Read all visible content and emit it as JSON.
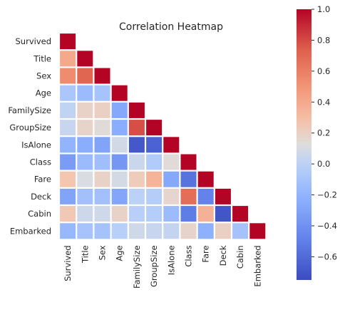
{
  "chart_data": {
    "type": "heatmap",
    "title": "Correlation Heatmap",
    "mask": "upper-triangle",
    "labels": [
      "Survived",
      "Title",
      "Sex",
      "Age",
      "FamilySize",
      "GroupSize",
      "IsAlone",
      "Class",
      "Fare",
      "Deck",
      "Cabin",
      "Embarked"
    ],
    "values": [
      [
        1.0
      ],
      [
        0.4,
        1.0
      ],
      [
        0.54,
        0.71,
        1.0
      ],
      [
        -0.08,
        -0.15,
        -0.1,
        1.0
      ],
      [
        0.02,
        0.19,
        0.2,
        -0.27,
        1.0
      ],
      [
        0.04,
        0.18,
        0.14,
        -0.24,
        0.79,
        1.0
      ],
      [
        -0.2,
        -0.24,
        -0.3,
        0.08,
        -0.69,
        -0.64,
        1.0
      ],
      [
        -0.34,
        -0.15,
        -0.13,
        -0.37,
        0.05,
        -0.05,
        0.14,
        1.0
      ],
      [
        0.26,
        0.11,
        0.19,
        0.09,
        0.22,
        0.35,
        -0.27,
        -0.56,
        1.0
      ],
      [
        -0.3,
        -0.12,
        -0.12,
        -0.28,
        0.0,
        -0.03,
        0.17,
        0.68,
        -0.48,
        1.0
      ],
      [
        0.24,
        0.06,
        0.07,
        0.19,
        -0.02,
        -0.03,
        -0.15,
        -0.51,
        0.36,
        -0.7,
        1.0
      ],
      [
        -0.17,
        -0.1,
        -0.11,
        -0.02,
        0.07,
        0.04,
        0.03,
        0.18,
        -0.22,
        0.2,
        -0.11,
        1.0
      ]
    ],
    "colorbar": {
      "colormap": "coolwarm",
      "vmin": -0.75,
      "vmax": 1.0,
      "ticks": [
        -0.6,
        -0.4,
        -0.2,
        0.0,
        0.2,
        0.4,
        0.6,
        0.8,
        1.0
      ],
      "tick_labels": [
        "−0.6",
        "−0.4",
        "−0.2",
        "0.0",
        "0.2",
        "0.4",
        "0.6",
        "0.8",
        "1.0"
      ]
    },
    "grid": false
  }
}
